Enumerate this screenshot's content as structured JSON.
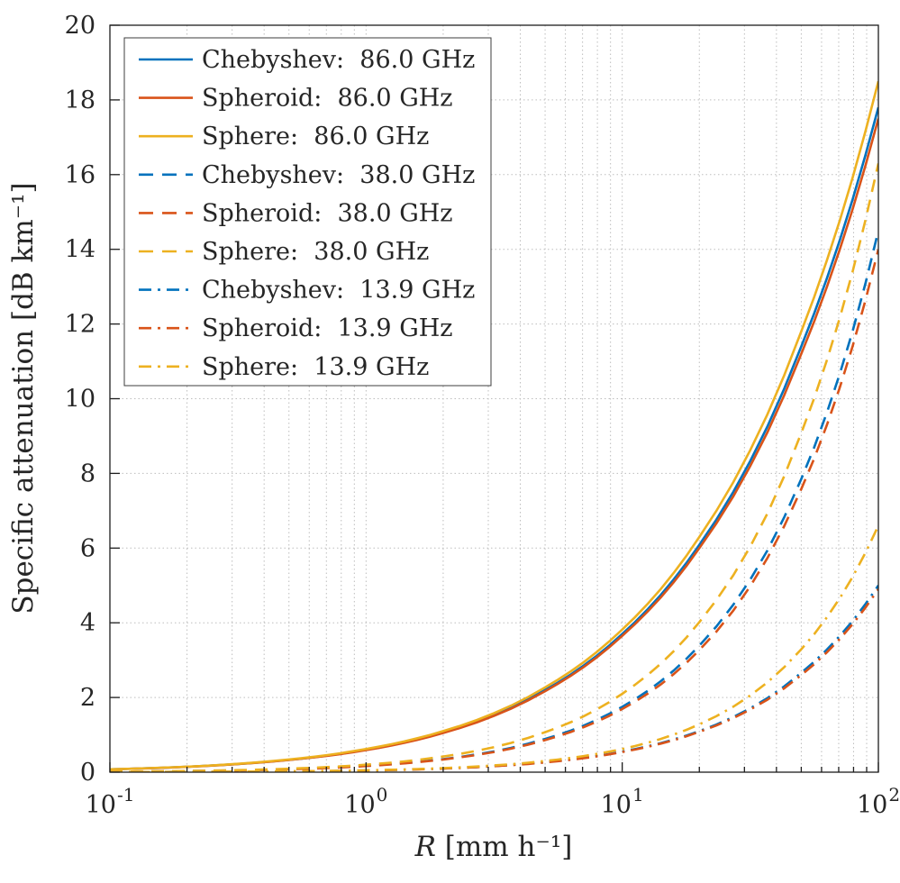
{
  "figure": {
    "background": "#ffffff",
    "xlabel_var": "R",
    "xlabel_rest": " [mm h⁻¹]",
    "ylabel": "Specific attenuation [dB km⁻¹]",
    "axis_color": "#262626",
    "grid_color": "#bdbdbd",
    "accent_colors": {
      "blue": "#0072BD",
      "orange": "#D95319",
      "yellow": "#EDB120"
    }
  },
  "chart_data": {
    "type": "line",
    "title": "",
    "xlabel": "R [mm h^-1]",
    "ylabel": "Specific attenuation [dB km^-1]",
    "x_scale": "log",
    "y_scale": "linear",
    "xlim": [
      0.1,
      100
    ],
    "ylim": [
      0,
      20
    ],
    "xticks": [
      0.1,
      1,
      10,
      100
    ],
    "xtick_exponents": [
      "-1",
      "0",
      "1",
      "2"
    ],
    "yticks": [
      0,
      2,
      4,
      6,
      8,
      10,
      12,
      14,
      16,
      18,
      20
    ],
    "grid": "on",
    "minor_grid_x": "on",
    "legend_position": "northwest",
    "x": [
      0.1,
      0.2,
      0.5,
      1,
      2,
      5,
      10,
      20,
      50,
      100
    ],
    "series": [
      {
        "name": "Chebyshev:  86.0 GHz",
        "color": "#0072BD",
        "style": "solid",
        "values": [
          0.076,
          0.145,
          0.33,
          0.6,
          1.07,
          2.2,
          3.7,
          6.09,
          11.4,
          17.8
        ]
      },
      {
        "name": "Spheroid:  86.0 GHz",
        "color": "#D95319",
        "style": "solid",
        "values": [
          0.075,
          0.143,
          0.327,
          0.59,
          1.05,
          2.17,
          3.65,
          6.0,
          11.2,
          17.5
        ]
      },
      {
        "name": "Sphere:  86.0 GHz",
        "color": "#EDB120",
        "style": "solid",
        "values": [
          0.078,
          0.148,
          0.34,
          0.62,
          1.1,
          2.27,
          3.82,
          6.3,
          11.8,
          18.5
        ]
      },
      {
        "name": "Chebyshev:  38.0 GHz",
        "color": "#0072BD",
        "style": "dashed",
        "values": [
          0.013,
          0.029,
          0.081,
          0.17,
          0.35,
          0.89,
          1.75,
          3.39,
          7.85,
          14.5
        ]
      },
      {
        "name": "Spheroid:  38.0 GHz",
        "color": "#D95319",
        "style": "dashed",
        "values": [
          0.013,
          0.028,
          0.078,
          0.164,
          0.34,
          0.86,
          1.69,
          3.27,
          7.58,
          14.0
        ]
      },
      {
        "name": "Sphere:  38.0 GHz",
        "color": "#EDB120",
        "style": "dashed",
        "values": [
          0.014,
          0.032,
          0.093,
          0.2,
          0.42,
          1.07,
          2.1,
          4.02,
          9.08,
          16.3
        ]
      },
      {
        "name": "Chebyshev:  13.9 GHz",
        "color": "#0072BD",
        "style": "dashdot",
        "values": [
          0.003,
          0.007,
          0.02,
          0.045,
          0.099,
          0.27,
          0.55,
          1.1,
          2.66,
          5.0
        ]
      },
      {
        "name": "Spheroid:  13.9 GHz",
        "color": "#D95319",
        "style": "dashdot",
        "values": [
          0.003,
          0.006,
          0.02,
          0.044,
          0.097,
          0.26,
          0.54,
          1.08,
          2.6,
          4.9
        ]
      },
      {
        "name": "Sphere:  13.9 GHz",
        "color": "#EDB120",
        "style": "dashdot",
        "values": [
          0.004,
          0.008,
          0.023,
          0.05,
          0.108,
          0.3,
          0.62,
          1.28,
          3.29,
          6.6
        ]
      }
    ]
  }
}
